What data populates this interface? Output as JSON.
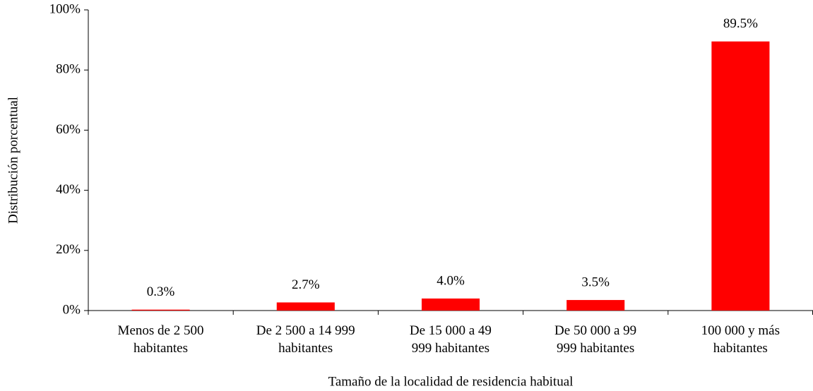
{
  "chart_data": {
    "type": "bar",
    "x_label": "Tamaño de la localidad de residencia habitual",
    "y_label": "Distribución porcentual",
    "categories": [
      "Menos de 2 500\nhabitantes",
      "De 2 500 a 14 999\nhabitantes",
      "De 15 000 a 49\n999 habitantes",
      "De 50 000 a 99\n999 habitantes",
      "100 000 y más\nhabitantes"
    ],
    "values": [
      0.3,
      2.7,
      4.0,
      3.5,
      89.5
    ],
    "value_labels": [
      "0.3%",
      "2.7%",
      "4.0%",
      "3.5%",
      "89.5%"
    ],
    "color": "#ff0000",
    "ylim": [
      0,
      100
    ],
    "yticks": [
      {
        "value": 0,
        "label": "0%"
      },
      {
        "value": 20,
        "label": "20%"
      },
      {
        "value": 40,
        "label": "40%"
      },
      {
        "value": 60,
        "label": "60%"
      },
      {
        "value": 80,
        "label": "80%"
      },
      {
        "value": 100,
        "label": "100%"
      }
    ],
    "grid": false
  }
}
